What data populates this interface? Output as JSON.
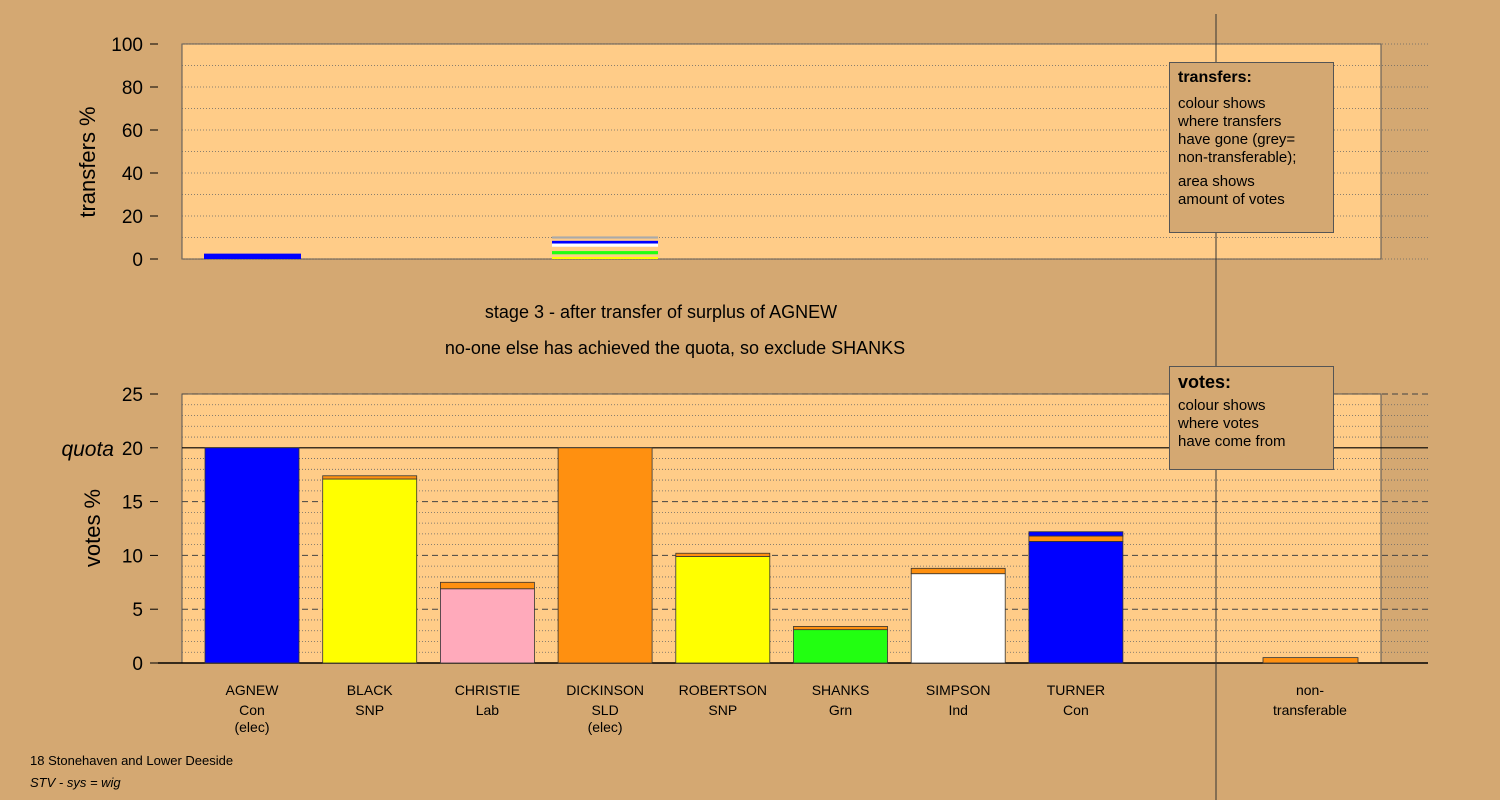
{
  "chart_data": [
    {
      "type": "bar",
      "name": "transfers",
      "ylabel": "transfers %",
      "ylim": [
        0,
        100
      ],
      "yticks": [
        0,
        20,
        40,
        60,
        80,
        100
      ],
      "categories": [
        "AGNEW",
        "CHRISTIE"
      ],
      "stacks": [
        {
          "category": "AGNEW",
          "bands": [
            {
              "value": 2.5,
              "color": "#0000ff"
            }
          ]
        },
        {
          "category": "CHRISTIE",
          "bands": [
            {
              "value": 1.0,
              "color": "#ffff00"
            },
            {
              "value": 1.2,
              "color": "#ffcc88"
            },
            {
              "value": 1.5,
              "color": "#22ff11"
            },
            {
              "value": 2.0,
              "color": "#ffcc88"
            },
            {
              "value": 1.5,
              "color": "#ffffff"
            },
            {
              "value": 1.3,
              "color": "#0000ff"
            },
            {
              "value": 1.0,
              "color": "#ffcc88"
            },
            {
              "value": 1.0,
              "color": "#aaaaaa"
            }
          ]
        }
      ]
    },
    {
      "type": "bar",
      "name": "votes",
      "ylabel": "votes %",
      "ylim": [
        0,
        25
      ],
      "yticks": [
        0,
        5,
        10,
        15,
        20,
        25
      ],
      "quota": 20,
      "quota_label": "quota",
      "candidates": [
        {
          "name": "AGNEW",
          "party": "Con",
          "note": "(elec)",
          "segments": [
            {
              "value": 20.0,
              "color": "#0000ff"
            }
          ]
        },
        {
          "name": "BLACK",
          "party": "SNP",
          "note": "",
          "segments": [
            {
              "value": 17.1,
              "color": "#ffff00"
            },
            {
              "value": 0.3,
              "color": "#ff9010"
            }
          ]
        },
        {
          "name": "CHRISTIE",
          "party": "Lab",
          "note": "",
          "segments": [
            {
              "value": 6.9,
              "color": "#ffaabb"
            },
            {
              "value": 0.6,
              "color": "#ff9010"
            }
          ]
        },
        {
          "name": "DICKINSON",
          "party": "SLD",
          "note": "(elec)",
          "segments": [
            {
              "value": 20.0,
              "color": "#ff9010"
            }
          ]
        },
        {
          "name": "ROBERTSON",
          "party": "SNP",
          "note": "",
          "segments": [
            {
              "value": 9.9,
              "color": "#ffff00"
            },
            {
              "value": 0.3,
              "color": "#ff9010"
            }
          ]
        },
        {
          "name": "SHANKS",
          "party": "Grn",
          "note": "",
          "segments": [
            {
              "value": 3.1,
              "color": "#22ff11"
            },
            {
              "value": 0.3,
              "color": "#ff9010"
            }
          ]
        },
        {
          "name": "SIMPSON",
          "party": "Ind",
          "note": "",
          "segments": [
            {
              "value": 8.3,
              "color": "#ffffff"
            },
            {
              "value": 0.5,
              "color": "#ff9010"
            }
          ]
        },
        {
          "name": "TURNER",
          "party": "Con",
          "note": "",
          "segments": [
            {
              "value": 11.3,
              "color": "#0000ff"
            },
            {
              "value": 0.5,
              "color": "#ff9010"
            },
            {
              "value": 0.4,
              "color": "#0000ff"
            }
          ]
        }
      ],
      "nontransferable": {
        "label_line1": "non-",
        "label_line2": "transferable",
        "segments": [
          {
            "value": 0.5,
            "color": "#ff9010"
          }
        ]
      }
    }
  ],
  "stage_title": "stage 3 - after transfer of surplus of AGNEW",
  "stage_subtitle": "no-one else has achieved the quota, so exclude SHANKS",
  "legend_transfers": {
    "title": "transfers:",
    "lines1": [
      "colour shows",
      "where transfers",
      "have gone (grey=",
      "non-transferable);"
    ],
    "lines2": [
      "area shows",
      "amount of votes"
    ]
  },
  "legend_votes": {
    "title": "votes:",
    "lines": [
      "colour shows",
      "where votes",
      "have come from"
    ]
  },
  "footer": {
    "constituency": "18 Stonehaven and Lower Deeside",
    "system": "STV - sys = wig"
  },
  "colors": {
    "background": "#d4a872",
    "plot_fill": "#ffcc88"
  }
}
